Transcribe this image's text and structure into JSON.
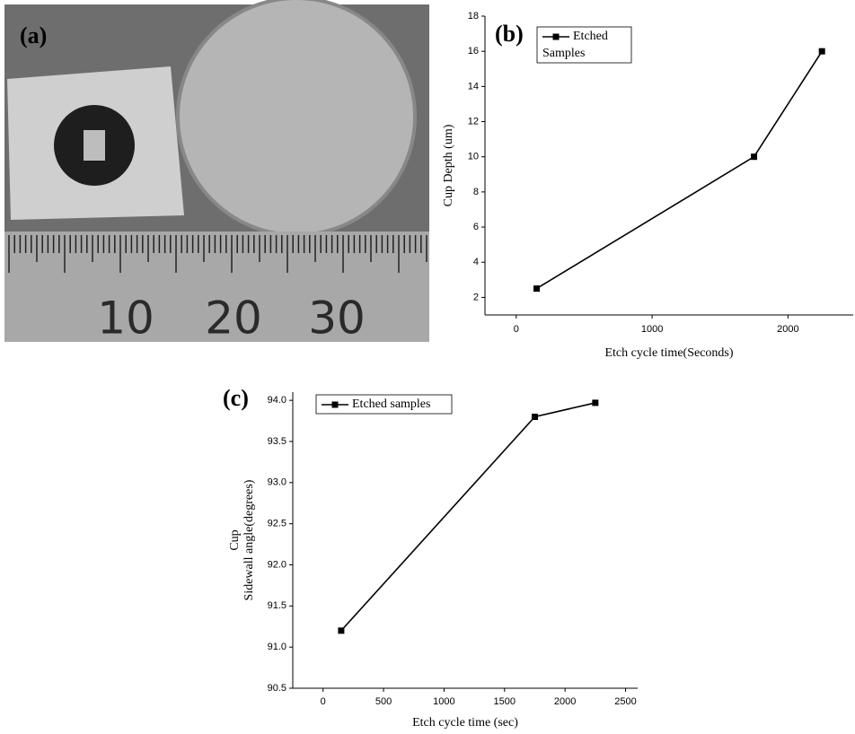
{
  "photo": {
    "label": "(a)",
    "ruler_labels": [
      "10",
      "20",
      "30"
    ]
  },
  "chart_data": [
    {
      "type": "line",
      "panel_label": "(b)",
      "xlabel": "Etch cycle time(Seconds)",
      "ylabel": [
        "Cup Depth (um)"
      ],
      "x": [
        150,
        1750,
        2250
      ],
      "series": [
        {
          "name": "Etched Samples",
          "color": "#000000",
          "values": [
            2.5,
            10,
            16
          ]
        }
      ],
      "xlim": [
        -230,
        2480
      ],
      "ylim": [
        1,
        18
      ],
      "xticks": [
        0,
        1000,
        2000
      ],
      "yticks": [
        2,
        4,
        6,
        8,
        10,
        12,
        14,
        16,
        18
      ],
      "legend": "upper left",
      "grid": false
    },
    {
      "type": "line",
      "panel_label": "(c)",
      "xlabel": "Etch cycle time (sec)",
      "ylabel": [
        "Cup",
        "Sidewall angle(degrees)"
      ],
      "x": [
        150,
        1750,
        2250
      ],
      "series": [
        {
          "name": "Etched samples",
          "color": "#000000",
          "values": [
            91.2,
            93.8,
            93.97
          ]
        }
      ],
      "xlim": [
        -250,
        2600
      ],
      "ylim": [
        90.5,
        94.1
      ],
      "xticks": [
        0,
        500,
        1000,
        1500,
        2000,
        2500
      ],
      "yticks": [
        90.5,
        {
          "value": 91,
          "label": "91.0"
        },
        91.5,
        {
          "value": 92,
          "label": "92.0"
        },
        92.5,
        {
          "value": 93,
          "label": "93.0"
        },
        93.5,
        {
          "value": 94,
          "label": "94.0"
        }
      ],
      "legend": "upper left",
      "grid": false
    }
  ]
}
